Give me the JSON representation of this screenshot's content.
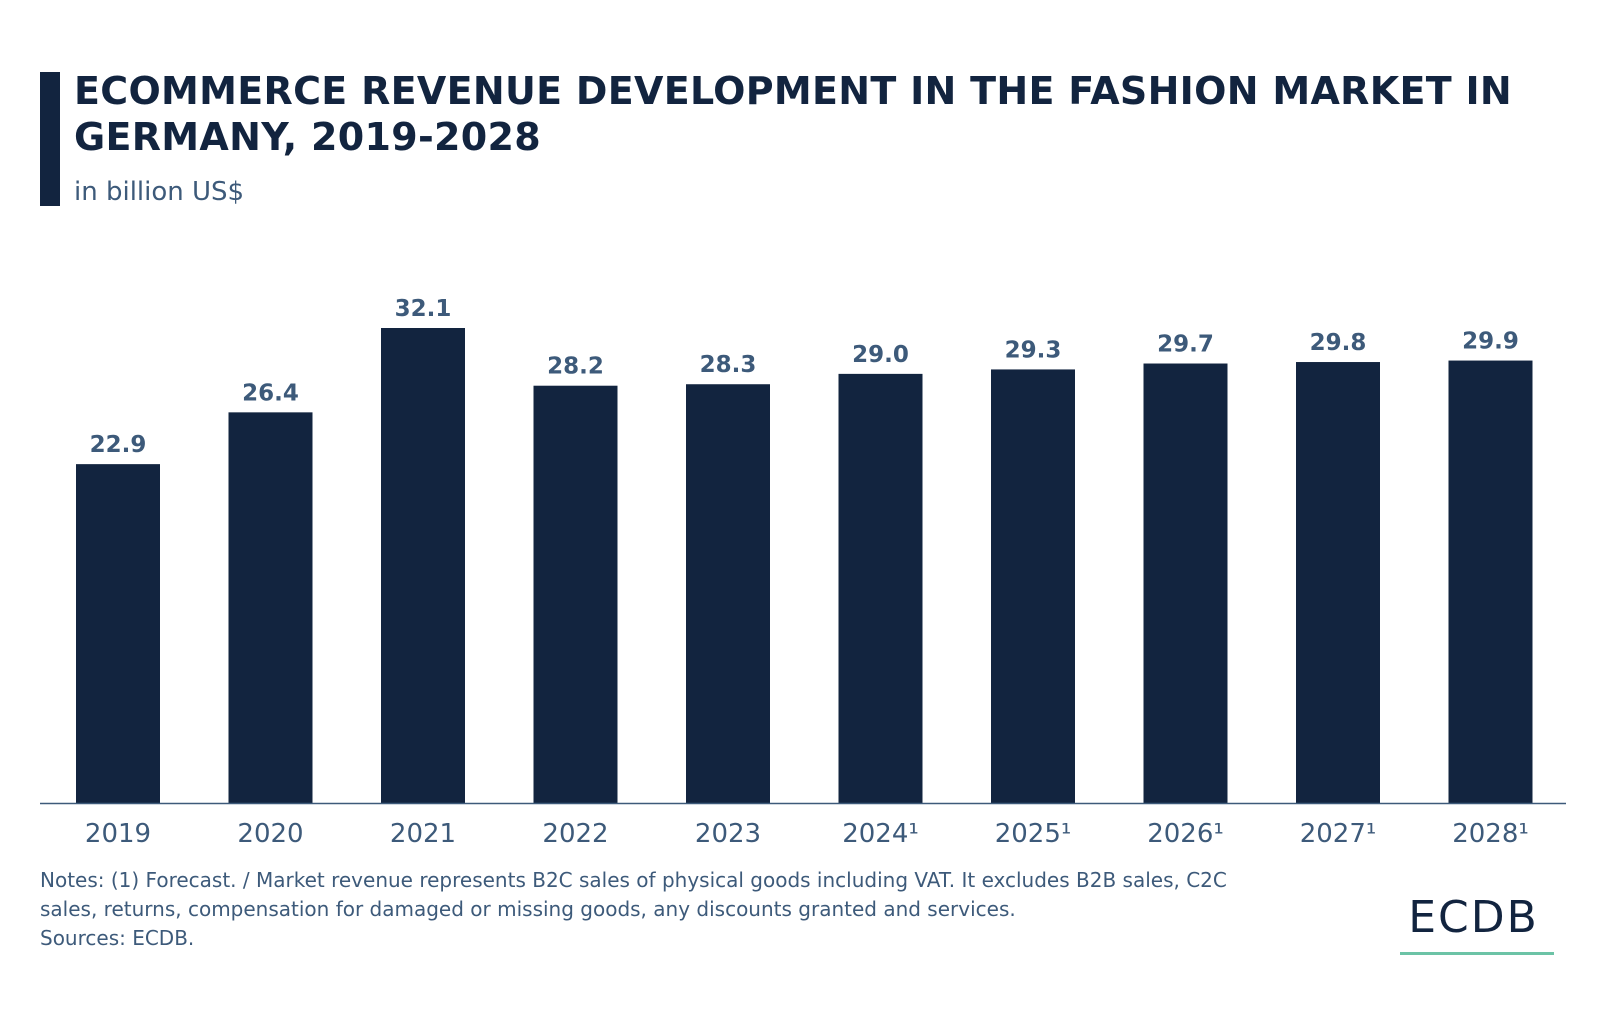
{
  "header": {
    "title": "ECOMMERCE REVENUE DEVELOPMENT IN THE FASHION MARKET IN GERMANY, 2019-2028",
    "subtitle": "in billion US$"
  },
  "chart_data": {
    "type": "bar",
    "title": "ECOMMERCE REVENUE DEVELOPMENT IN THE FASHION MARKET IN GERMANY, 2019-2028",
    "ylabel": "in billion US$",
    "categories": [
      "2019",
      "2020",
      "2021",
      "2022",
      "2023",
      "2024¹",
      "2025¹",
      "2026¹",
      "2027¹",
      "2028¹"
    ],
    "values": [
      22.9,
      26.4,
      32.1,
      28.2,
      28.3,
      29.0,
      29.3,
      29.7,
      29.8,
      29.9
    ],
    "value_labels": [
      "22.9",
      "26.4",
      "32.1",
      "28.2",
      "28.3",
      "29.0",
      "29.3",
      "29.7",
      "29.8",
      "29.9"
    ],
    "ylim": [
      0,
      32.1
    ],
    "grid": false,
    "legend": "none",
    "colors": {
      "bar": "#12243f",
      "label": "#3d5a7a",
      "axis": "#3d5a7a"
    }
  },
  "footer": {
    "notes": "Notes: (1) Forecast. / Market revenue represents B2C sales of physical goods including VAT. It excludes B2B sales, C2C sales, returns, compensation for damaged or missing goods, any discounts granted and services.",
    "sources": "Sources: ECDB.",
    "logo": "ECDB"
  },
  "colors": {
    "accent": "#12243f",
    "logo_underline": "#6cc3a6"
  }
}
